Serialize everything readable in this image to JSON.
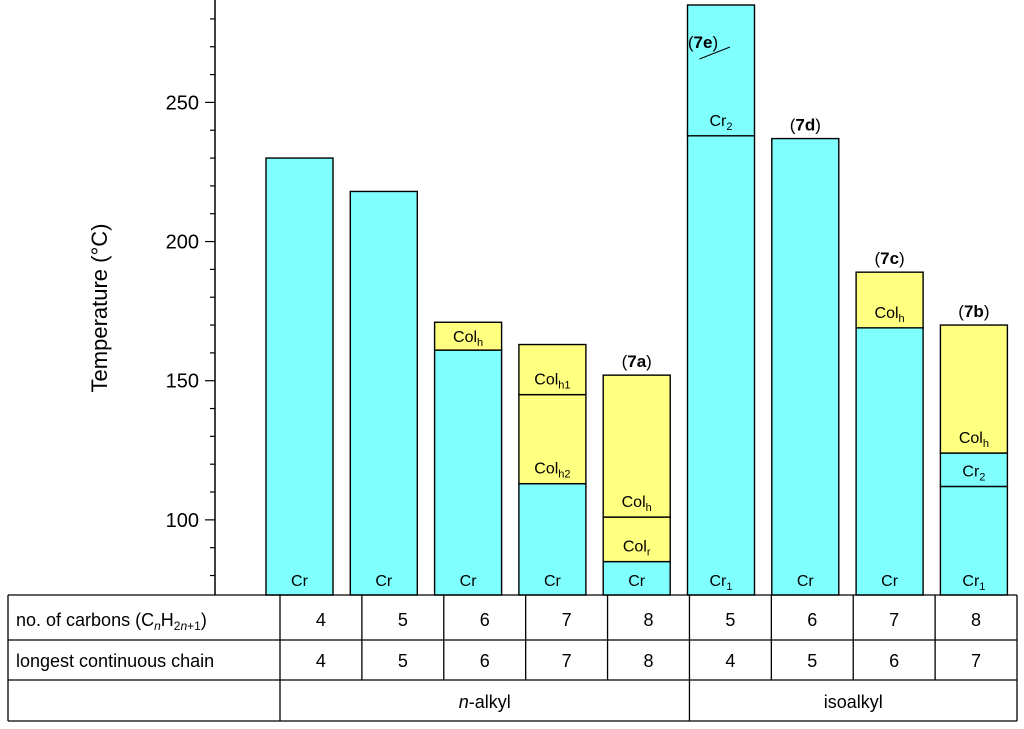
{
  "chart_data": {
    "type": "bar",
    "title": "",
    "ylabel": "Temperature (°C)",
    "ylim": [
      73,
      285
    ],
    "yticks": [
      100,
      150,
      200,
      250
    ],
    "colors": {
      "cr": "#80ffff",
      "col": "#ffff80",
      "stroke": "#000000"
    },
    "bars": [
      {
        "n": "4",
        "chain": "4",
        "segments": [
          {
            "phase": "cr",
            "top": 230,
            "label": "Cr"
          }
        ]
      },
      {
        "n": "5",
        "chain": "5",
        "segments": [
          {
            "phase": "cr",
            "top": 218,
            "label": "Cr"
          }
        ]
      },
      {
        "n": "6",
        "chain": "6",
        "segments": [
          {
            "phase": "cr",
            "top": 161,
            "label": "Cr"
          },
          {
            "phase": "col",
            "top": 171,
            "label": "Col",
            "sub": "h"
          }
        ]
      },
      {
        "n": "7",
        "chain": "7",
        "segments": [
          {
            "phase": "cr",
            "top": 113,
            "label": "Cr"
          },
          {
            "phase": "col",
            "top": 145,
            "label": "Col",
            "sub": "h2"
          },
          {
            "phase": "col",
            "top": 163,
            "label": "Col",
            "sub": "h1"
          }
        ]
      },
      {
        "n": "8",
        "chain": "8",
        "compound": "7a",
        "segments": [
          {
            "phase": "cr",
            "top": 85,
            "label": "Cr"
          },
          {
            "phase": "col",
            "top": 101,
            "label": "Col",
            "sub": "r"
          },
          {
            "phase": "col",
            "top": 152,
            "label": "Col",
            "sub": "h"
          }
        ]
      },
      {
        "n": "5",
        "chain": "4",
        "compound": "7e",
        "segments": [
          {
            "phase": "cr",
            "top": 238,
            "label": "Cr",
            "sub": "1"
          },
          {
            "phase": "cr",
            "top": 285,
            "label": "Cr",
            "sub": "2"
          }
        ]
      },
      {
        "n": "6",
        "chain": "5",
        "compound": "7d",
        "segments": [
          {
            "phase": "cr",
            "top": 237,
            "label": "Cr"
          }
        ]
      },
      {
        "n": "7",
        "chain": "6",
        "compound": "7c",
        "segments": [
          {
            "phase": "cr",
            "top": 169,
            "label": "Cr"
          },
          {
            "phase": "col",
            "top": 189,
            "label": "Col",
            "sub": "h"
          }
        ]
      },
      {
        "n": "8",
        "chain": "7",
        "compound": "7b",
        "segments": [
          {
            "phase": "cr",
            "top": 112,
            "label": "Cr",
            "sub": "1"
          },
          {
            "phase": "cr",
            "top": 124,
            "label": "Cr",
            "sub": "2"
          },
          {
            "phase": "col",
            "top": 170,
            "label": "Col",
            "sub": "h"
          }
        ]
      }
    ],
    "table": {
      "row1_label": {
        "pre": "no. of carbons (C",
        "n": "n",
        "mid": "H",
        "sub": "2",
        "subn": "n",
        "subrest": "+1",
        "post": ")"
      },
      "row2_label": "longest continuous chain",
      "groups": [
        {
          "label_italic": "n",
          "label_rest": "-alkyl"
        },
        {
          "label": "isoalkyl"
        }
      ]
    }
  }
}
